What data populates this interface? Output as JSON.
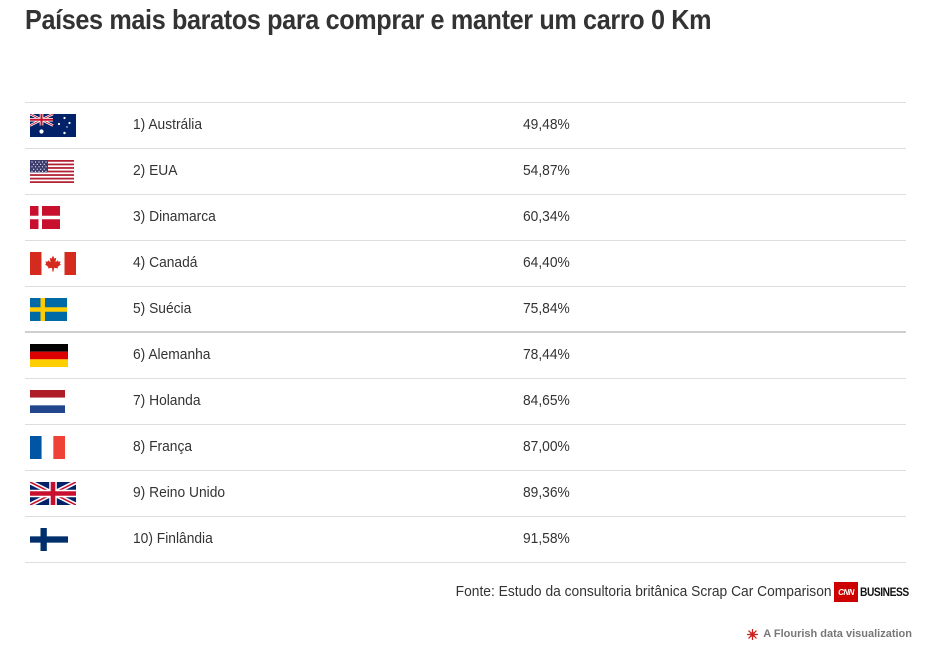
{
  "title": "Países mais baratos para comprar e manter um carro 0 Km",
  "rows": [
    {
      "flag": "australia-flag-icon",
      "country": "1) Austrália",
      "value": "49,48%"
    },
    {
      "flag": "usa-flag-icon",
      "country": "2) EUA",
      "value": "54,87%"
    },
    {
      "flag": "denmark-flag-icon",
      "country": "3) Dinamarca",
      "value": "60,34%"
    },
    {
      "flag": "canada-flag-icon",
      "country": "4) Canadá",
      "value": "64,40%"
    },
    {
      "flag": "sweden-flag-icon",
      "country": "5) Suécia",
      "value": "75,84%"
    },
    {
      "flag": "germany-flag-icon",
      "country": "6) Alemanha",
      "value": "78,44%"
    },
    {
      "flag": "netherlands-flag-icon",
      "country": "7) Holanda",
      "value": "84,65%"
    },
    {
      "flag": "france-flag-icon",
      "country": "8) França",
      "value": "87,00%"
    },
    {
      "flag": "uk-flag-icon",
      "country": "9) Reino Unido",
      "value": "89,36%"
    },
    {
      "flag": "finland-flag-icon",
      "country": "10) Finlândia",
      "value": "91,58%"
    }
  ],
  "footer": {
    "source": "Fonte: Estudo da consultoria britânica Scrap Car Comparison",
    "logo_cnn": "CNN",
    "logo_business": "BUSINESS",
    "flourish_label": "A Flourish data visualization"
  },
  "colors": {
    "text": "#333333",
    "divider": "#dddddd",
    "flourish": "#777777",
    "flourish_icon": "#cc2222",
    "cnn_red": "#cc0000"
  }
}
